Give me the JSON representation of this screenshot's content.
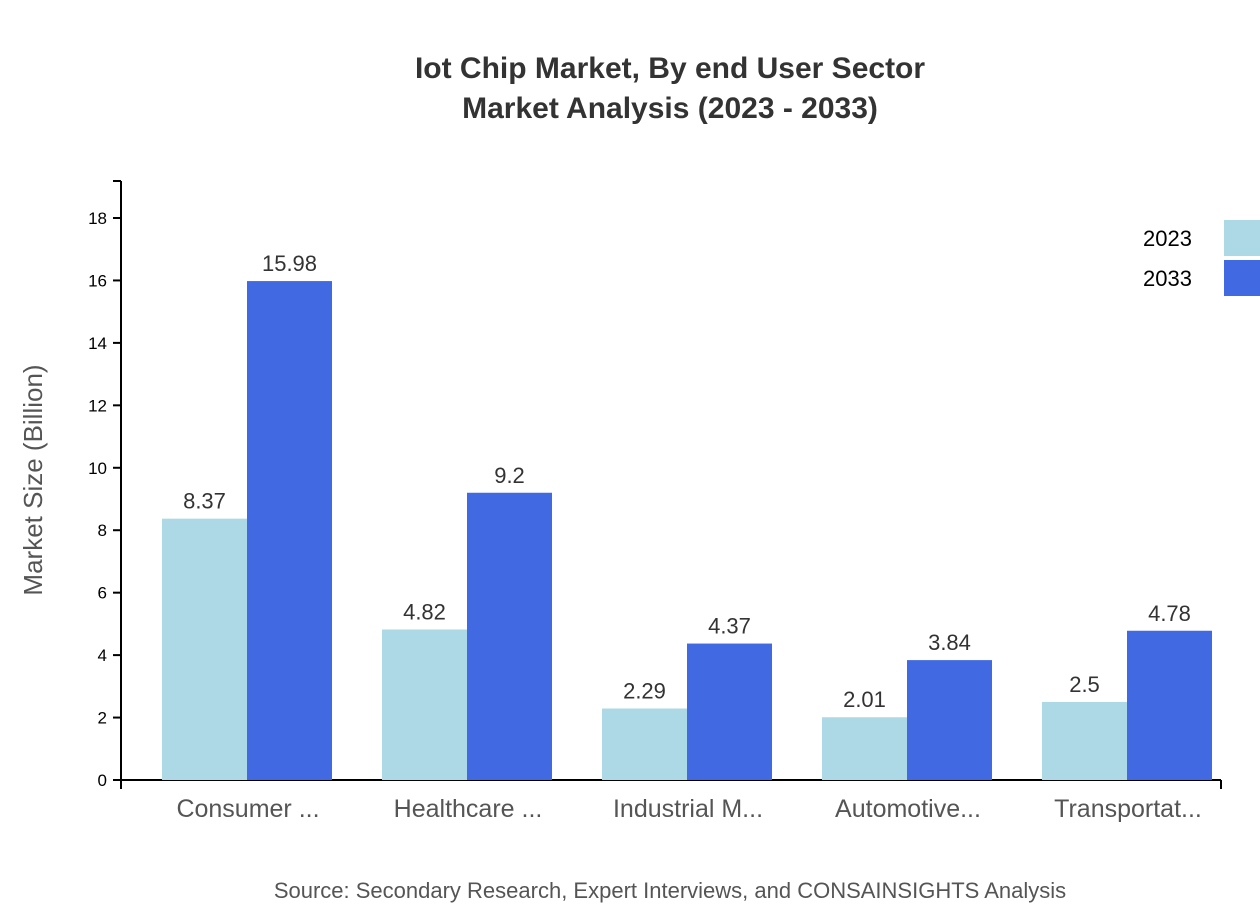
{
  "chart_data": {
    "type": "bar",
    "title": "Iot Chip Market, By end User Sector",
    "subtitle": "Market Analysis (2023 - 2033)",
    "xlabel": "",
    "ylabel": "Market Size (Billion)",
    "ylim": [
      0,
      19.2
    ],
    "yticks": [
      0,
      2,
      4,
      6,
      8,
      10,
      12,
      14,
      16,
      18
    ],
    "grid": false,
    "legend_position": "top-right",
    "categories": [
      "Consumer ...",
      "Healthcare ...",
      "Industrial M...",
      "Automotive...",
      "Transportat..."
    ],
    "series": [
      {
        "name": "2023",
        "color": "#add8e6",
        "values": [
          8.37,
          4.82,
          2.29,
          2.01,
          2.5
        ]
      },
      {
        "name": "2033",
        "color": "#4169e1",
        "values": [
          15.98,
          9.2,
          4.37,
          3.84,
          4.78
        ]
      }
    ],
    "source": "Source: Secondary Research, Expert Interviews, and CONSAINSIGHTS Analysis"
  }
}
